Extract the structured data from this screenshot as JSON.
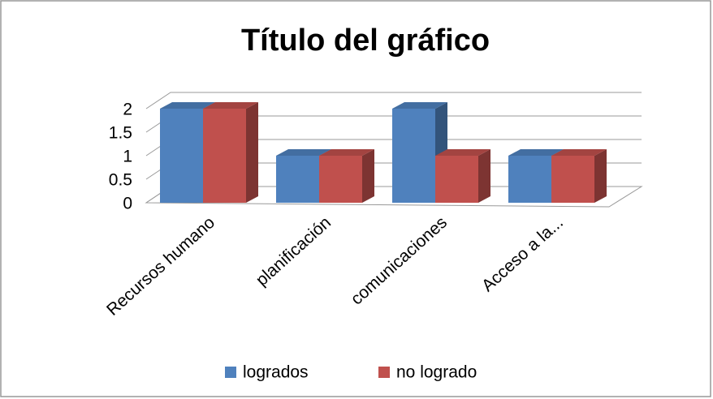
{
  "chart_data": {
    "type": "bar3d",
    "title": "Título del gráfico",
    "categories": [
      "Recursos humano",
      "planificación",
      "comunicaciones",
      "Acceso a la..."
    ],
    "series": [
      {
        "name": "logrados",
        "color": "#4f81bd",
        "values": [
          2,
          1,
          2,
          1
        ]
      },
      {
        "name": "no logrado",
        "color": "#c0504d",
        "values": [
          2,
          1,
          1,
          1
        ]
      }
    ],
    "ylim": [
      0,
      2
    ],
    "yticks": [
      0,
      0.5,
      1,
      1.5,
      2
    ],
    "grid": true,
    "legend": "bottom"
  }
}
